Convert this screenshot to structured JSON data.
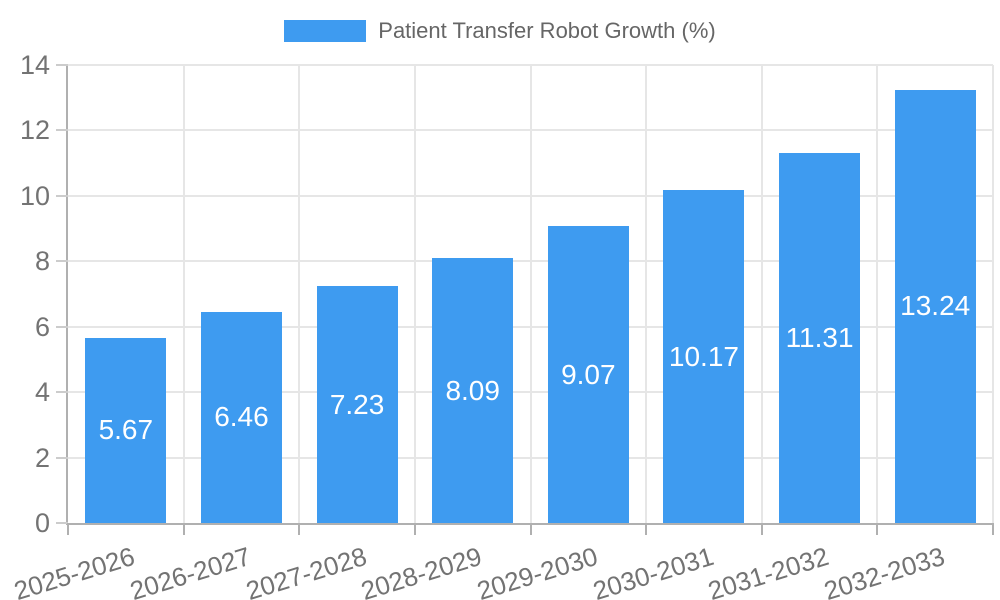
{
  "chart_data": {
    "type": "bar",
    "title": "Patient Transfer Robot Growth (%)",
    "categories": [
      "2025-2026",
      "2026-2027",
      "2027-2028",
      "2028-2029",
      "2029-2030",
      "2030-2031",
      "2031-2032",
      "2032-2033"
    ],
    "values": [
      5.67,
      6.46,
      7.23,
      8.09,
      9.07,
      10.17,
      11.31,
      13.24
    ],
    "value_labels": [
      "5.67",
      "6.46",
      "7.23",
      "8.09",
      "9.07",
      "10.17",
      "11.31",
      "13.24"
    ],
    "xlabel": "",
    "ylabel": "",
    "ylim": [
      0,
      14
    ],
    "y_tick_step": 2,
    "y_tick_labels": [
      "0",
      "2",
      "4",
      "6",
      "8",
      "10",
      "12",
      "14"
    ],
    "grid": true,
    "legend_position": "top",
    "x_label_rotation_deg": -17,
    "colors": {
      "bar": "#3e9bf0",
      "grid": "#e6e6e6",
      "axis": "#b0b0b0",
      "tick_label": "#737373",
      "legend_text": "#666666",
      "value_label": "#ffffff",
      "background": "#ffffff"
    }
  }
}
